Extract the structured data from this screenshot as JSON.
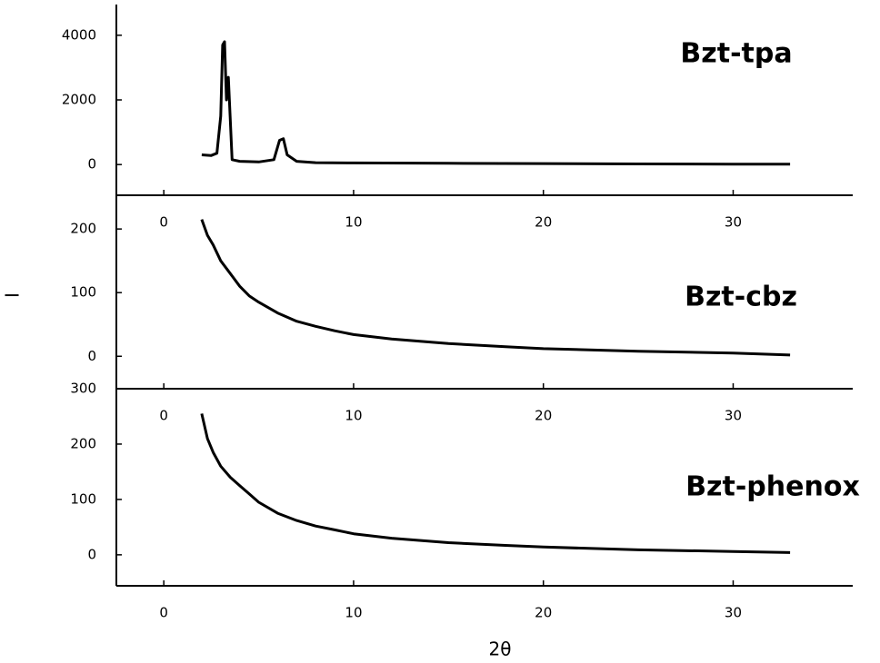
{
  "chart_data": [
    {
      "type": "line",
      "label": "Bzt-tpa",
      "x": [
        2,
        2.5,
        2.8,
        3.0,
        3.1,
        3.2,
        3.3,
        3.4,
        3.6,
        4,
        5,
        5.8,
        6.1,
        6.3,
        6.5,
        7,
        8,
        10,
        15,
        20,
        25,
        30,
        33
      ],
      "values": [
        300,
        280,
        350,
        1500,
        3700,
        3800,
        2000,
        2700,
        150,
        100,
        80,
        150,
        750,
        800,
        300,
        100,
        60,
        50,
        40,
        30,
        20,
        15,
        10
      ],
      "color": "#000000",
      "xlim": [
        -2.5,
        36.3
      ],
      "xticks": [
        0,
        10,
        20,
        30
      ],
      "ylim": [
        -950,
        4950
      ],
      "yticks": [
        0,
        2000,
        4000
      ]
    },
    {
      "type": "line",
      "label": "Bzt-cbz",
      "ylabel": "I",
      "x": [
        2,
        2.3,
        2.6,
        3,
        3.5,
        4,
        4.5,
        5,
        6,
        7,
        8,
        9,
        10,
        12,
        15,
        18,
        20,
        25,
        30,
        33
      ],
      "values": [
        215,
        190,
        175,
        150,
        130,
        110,
        95,
        85,
        68,
        55,
        47,
        40,
        34,
        27,
        20,
        15,
        12,
        8,
        5,
        2
      ],
      "color": "#000000",
      "xlim": [
        -2.5,
        36.3
      ],
      "xticks": [
        0,
        10,
        20,
        30
      ],
      "ylim": [
        -51,
        253
      ],
      "yticks": [
        0,
        100,
        200
      ]
    },
    {
      "type": "line",
      "label": "Bzt-phenox",
      "xlabel": "2θ",
      "x": [
        2,
        2.3,
        2.6,
        3,
        3.5,
        4,
        4.5,
        5,
        6,
        7,
        8,
        9,
        10,
        12,
        15,
        18,
        20,
        25,
        30,
        33
      ],
      "values": [
        255,
        210,
        185,
        160,
        140,
        125,
        110,
        95,
        75,
        62,
        52,
        45,
        38,
        30,
        22,
        17,
        14,
        9,
        6,
        4
      ],
      "color": "#000000",
      "xlim": [
        -2.5,
        36.3
      ],
      "xticks": [
        0,
        10,
        20,
        30
      ],
      "ylim": [
        -56,
        300
      ],
      "yticks": [
        0,
        100,
        200,
        300
      ]
    }
  ]
}
